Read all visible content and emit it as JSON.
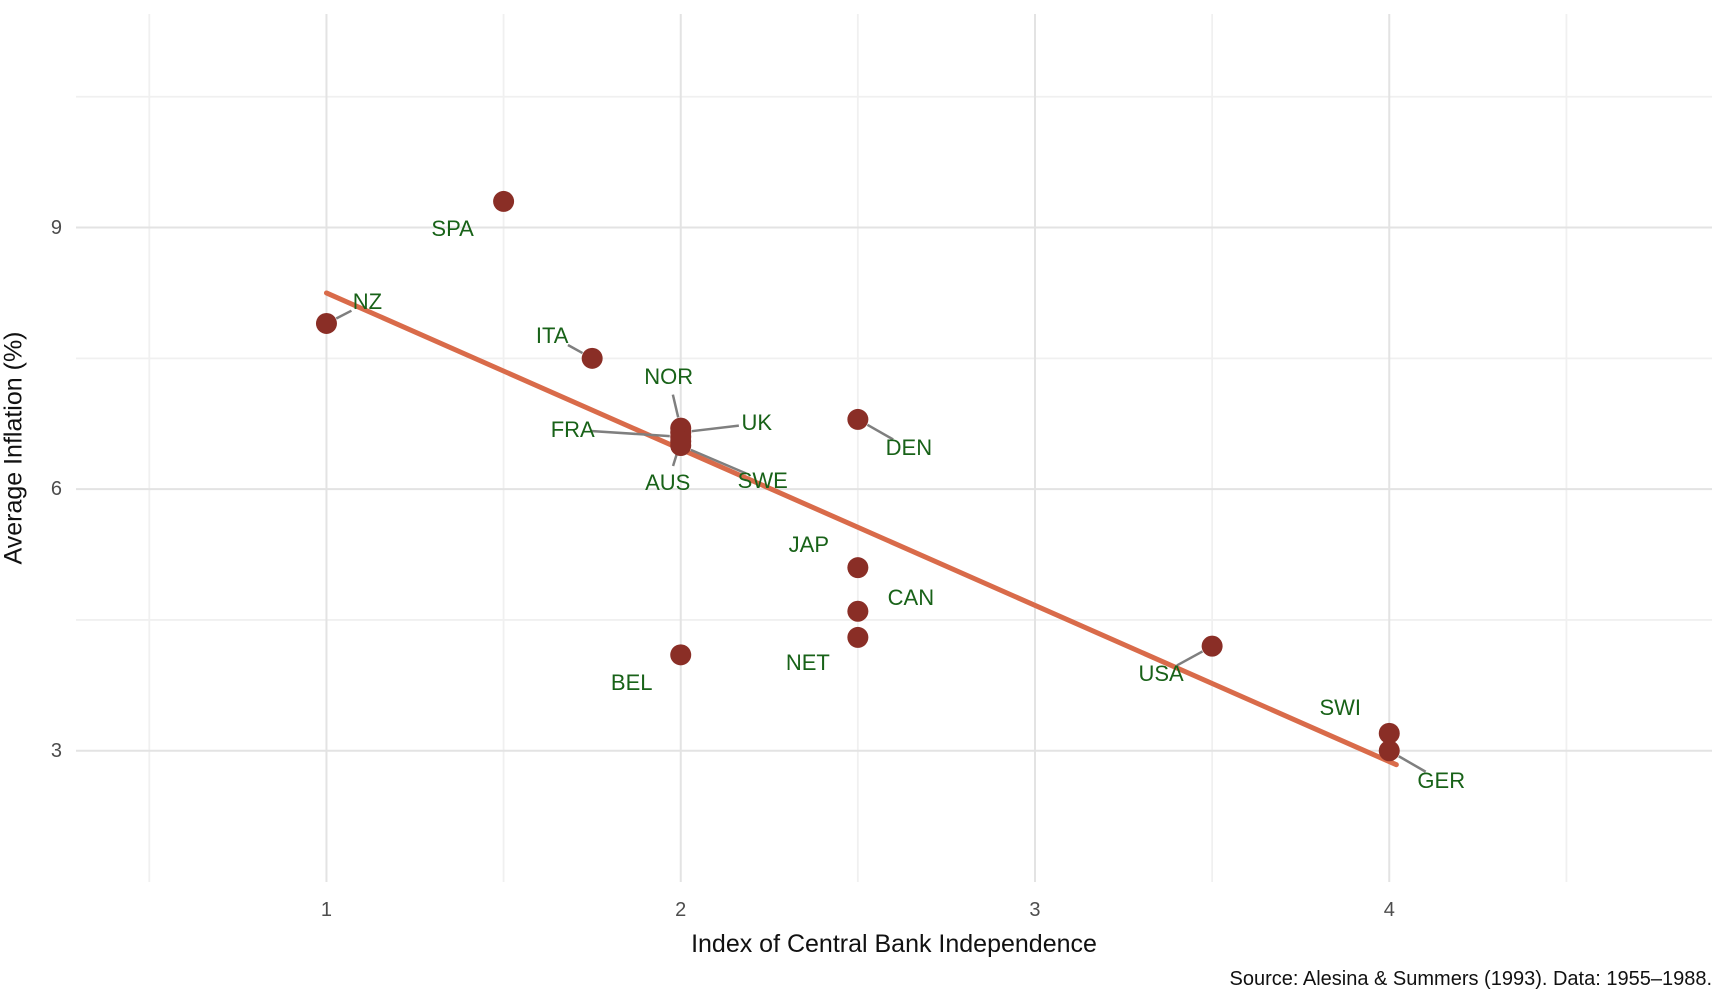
{
  "figure": {
    "source_note": "Source: Alesina & Summers (1993). Data: 1955–1988."
  },
  "chart_data": {
    "type": "scatter",
    "title": "",
    "xlabel": "Index of Central Bank Independence",
    "ylabel": "Average Inflation (%)",
    "xlim": [
      0.293,
      4.911
    ],
    "ylim": [
      1.495,
      11.449
    ],
    "x_ticks": [
      1,
      2,
      3,
      4
    ],
    "y_ticks": [
      3,
      6,
      9
    ],
    "x_minor_gridlines": [
      0.5,
      1.5,
      2.5,
      3.5,
      4.5
    ],
    "y_minor_gridlines": [
      4.5,
      7.5,
      10.5
    ],
    "grid": "major-and-minor",
    "legend": "none",
    "points": [
      {
        "label": "NZ",
        "x": 1.0,
        "y": 7.9,
        "label_offset": [
          41,
          -21
        ],
        "leader": true
      },
      {
        "label": "SPA",
        "x": 1.5,
        "y": 9.3,
        "label_offset": [
          -51,
          28
        ],
        "leader": false
      },
      {
        "label": "ITA",
        "x": 1.75,
        "y": 7.5,
        "label_offset": [
          -40,
          -22
        ],
        "leader": true
      },
      {
        "label": "NOR",
        "x": 2.0,
        "y": 6.7,
        "label_offset": [
          -12,
          -51
        ],
        "leader": true
      },
      {
        "label": "UK",
        "x": 2.0,
        "y": 6.65,
        "label_offset": [
          76,
          -9
        ],
        "leader": true
      },
      {
        "label": "FRA",
        "x": 2.0,
        "y": 6.6,
        "label_offset": [
          -108,
          -7
        ],
        "leader": true
      },
      {
        "label": "AUS",
        "x": 2.0,
        "y": 6.55,
        "label_offset": [
          -13,
          42
        ],
        "leader": true
      },
      {
        "label": "SWE",
        "x": 2.0,
        "y": 6.5,
        "label_offset": [
          82,
          35
        ],
        "leader": true
      },
      {
        "label": "DEN",
        "x": 2.5,
        "y": 6.8,
        "label_offset": [
          51,
          29
        ],
        "leader": true
      },
      {
        "label": "JAP",
        "x": 2.5,
        "y": 5.1,
        "label_offset": [
          -49,
          -23
        ],
        "leader": false
      },
      {
        "label": "CAN",
        "x": 2.5,
        "y": 4.6,
        "label_offset": [
          53,
          -13
        ],
        "leader": false
      },
      {
        "label": "NET",
        "x": 2.5,
        "y": 4.3,
        "label_offset": [
          -50,
          26
        ],
        "leader": false
      },
      {
        "label": "BEL",
        "x": 2.0,
        "y": 4.1,
        "label_offset": [
          -49,
          28
        ],
        "leader": false
      },
      {
        "label": "USA",
        "x": 3.5,
        "y": 4.2,
        "label_offset": [
          -51,
          28
        ],
        "leader": true
      },
      {
        "label": "SWI",
        "x": 4.0,
        "y": 3.2,
        "label_offset": [
          -49,
          -25
        ],
        "leader": false
      },
      {
        "label": "GER",
        "x": 4.0,
        "y": 3.0,
        "label_offset": [
          52,
          30
        ],
        "leader": true
      }
    ],
    "trend_line": {
      "x1": 1.0,
      "y1": 8.25,
      "x2": 4.02,
      "y2": 2.84
    },
    "colors": {
      "point": "#8A2E26",
      "country_label": "#186218",
      "trend": "#D96B4A",
      "leader": "#7F7F7F",
      "grid_major": "#E3E3E3",
      "grid_minor": "#F0F0F0",
      "axis_tick_text": "#4D4D4D",
      "axis_title_text": "#111111",
      "source_text": "#111111",
      "background": "#FFFFFF"
    }
  }
}
